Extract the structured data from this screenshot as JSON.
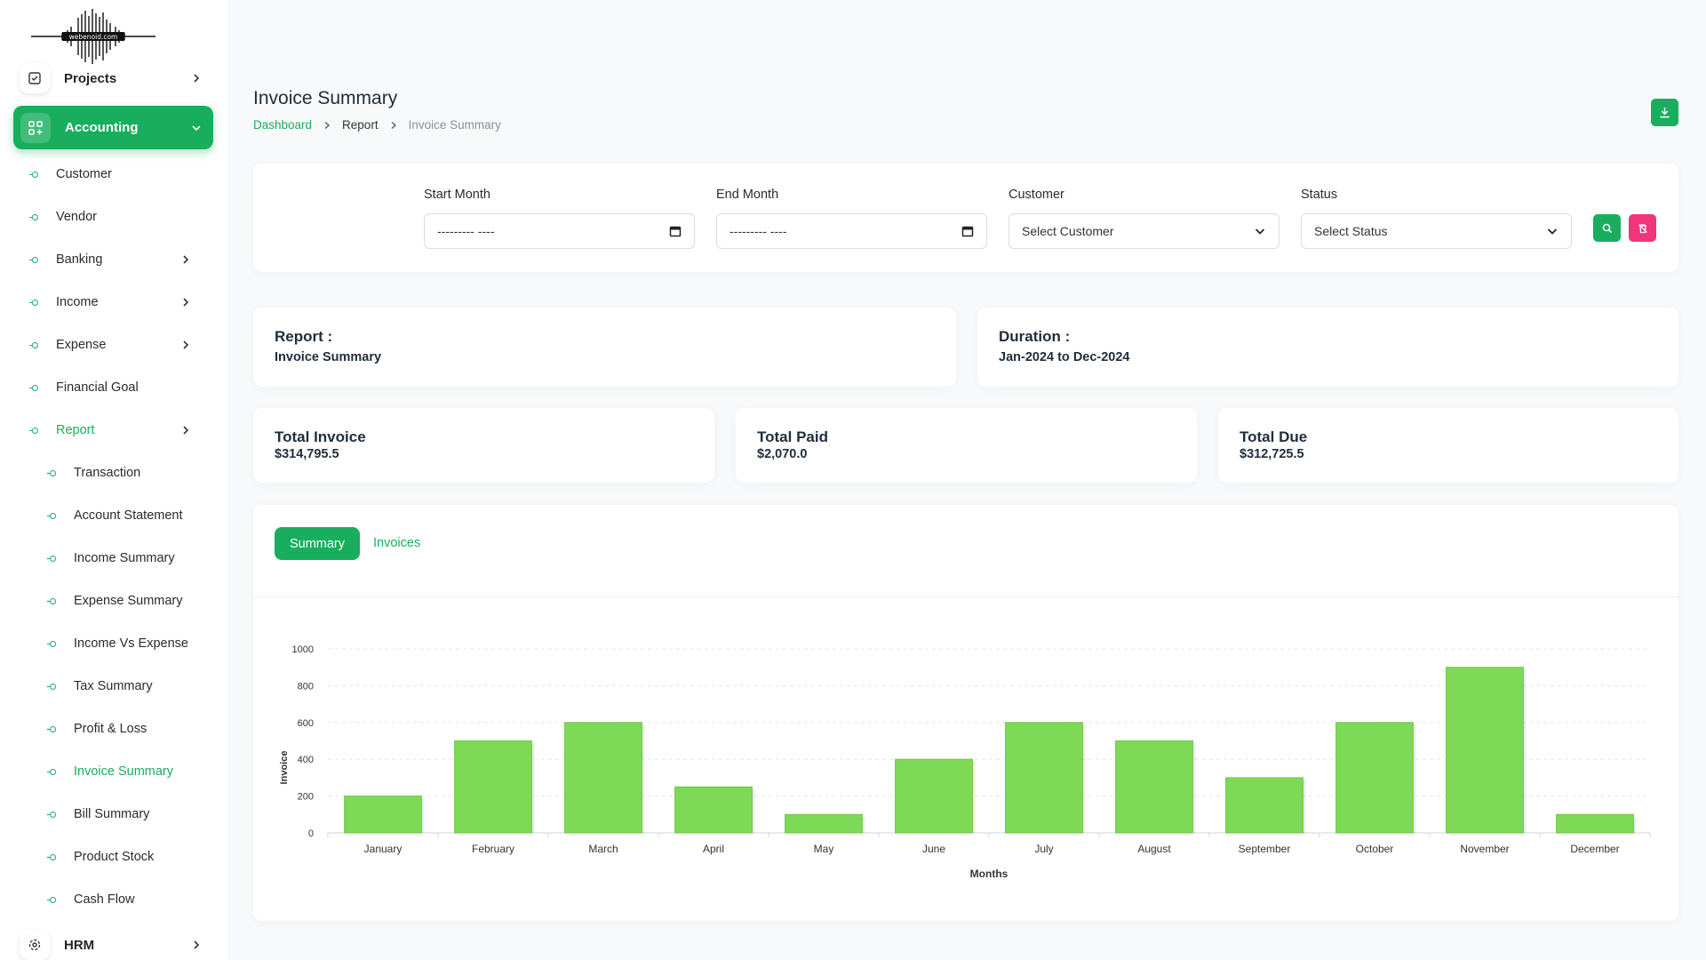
{
  "brand": {
    "logo_text": "webenoid.com"
  },
  "sidebar": {
    "projects": "Projects",
    "accounting": "Accounting",
    "customer": "Customer",
    "vendor": "Vendor",
    "banking": "Banking",
    "income": "Income",
    "expense": "Expense",
    "financial_goal": "Financial Goal",
    "report": "Report",
    "report_items": [
      "Transaction",
      "Account Statement",
      "Income Summary",
      "Expense Summary",
      "Income Vs Expense",
      "Tax Summary",
      "Profit & Loss",
      "Invoice Summary",
      "Bill Summary",
      "Product Stock",
      "Cash Flow"
    ],
    "hrm": "HRM"
  },
  "header": {
    "title": "Invoice Summary",
    "breadcrumb": [
      "Dashboard",
      "Report",
      "Invoice Summary"
    ]
  },
  "filters": {
    "start_month_label": "Start Month",
    "start_month_value": "--------- ----",
    "end_month_label": "End Month",
    "end_month_value": "--------- ----",
    "customer_label": "Customer",
    "customer_value": "Select Customer",
    "status_label": "Status",
    "status_value": "Select Status"
  },
  "info": {
    "report_label": "Report :",
    "report_value": "Invoice Summary",
    "duration_label": "Duration :",
    "duration_value": "Jan-2024 to Dec-2024"
  },
  "stats": {
    "total_invoice_label": "Total Invoice",
    "total_invoice_value": "$314,795.5",
    "total_paid_label": "Total Paid",
    "total_paid_value": "$2,070.0",
    "total_due_label": "Total Due",
    "total_due_value": "$312,725.5"
  },
  "tabs": {
    "summary": "Summary",
    "invoices": "Invoices"
  },
  "colors": {
    "accent": "#18ae5e",
    "danger": "#f0357a",
    "bar": "#7ed957"
  },
  "chart_data": {
    "type": "bar",
    "categories": [
      "January",
      "February",
      "March",
      "April",
      "May",
      "June",
      "July",
      "August",
      "September",
      "October",
      "November",
      "December"
    ],
    "values": [
      200,
      500,
      600,
      250,
      100,
      400,
      600,
      500,
      300,
      600,
      900,
      100
    ],
    "xlabel": "Months",
    "ylabel": "Invoice",
    "ylim": [
      0,
      1000
    ],
    "yticks": [
      0,
      200,
      400,
      600,
      800,
      1000
    ],
    "grid": true
  }
}
